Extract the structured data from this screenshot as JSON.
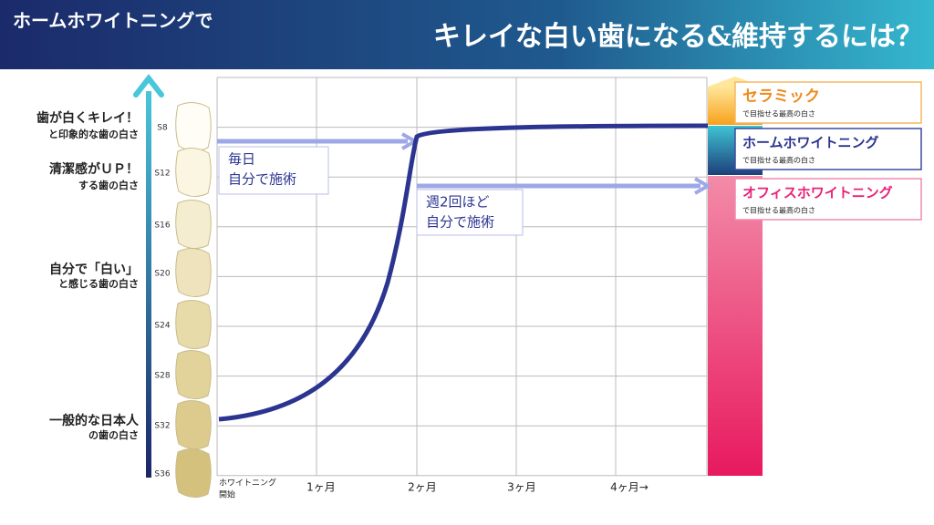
{
  "header": {
    "left_title": "ホームホワイトニングで",
    "main_title": "キレイな白い歯になる&維持するには？"
  },
  "whiteness_levels": [
    {
      "main": "歯が白くキレイ！",
      "sub": "と印象的な歯の白さ"
    },
    {
      "main": "清潔感がＵＰ！",
      "sub": "する歯の白さ"
    },
    {
      "main": "自分で「白い」",
      "sub": "と感じる歯の白さ"
    },
    {
      "main": "一般的な日本人",
      "sub": "の歯の白さ"
    }
  ],
  "shade_scale": [
    "S8",
    "S12",
    "S16",
    "S20",
    "S24",
    "S28",
    "S32",
    "S36"
  ],
  "x_axis": {
    "start": [
      "ホワイトニング",
      "開始"
    ],
    "labels": [
      "1ヶ月",
      "2ヶ月",
      "3ヶ月",
      "4ヶ月→"
    ]
  },
  "notes": [
    {
      "lines": [
        "毎日",
        "自分で施術"
      ]
    },
    {
      "lines": [
        "週2回ほど",
        "自分で施術"
      ]
    }
  ],
  "treatments": [
    {
      "name": "セラミック",
      "caption": "で目指せる最高の白さ"
    },
    {
      "name": "ホームホワイトニング",
      "caption": "で目指せる最高の白さ"
    },
    {
      "name": "オフィスホワイトニング",
      "caption": "で目指せる最高の白さ"
    }
  ]
}
